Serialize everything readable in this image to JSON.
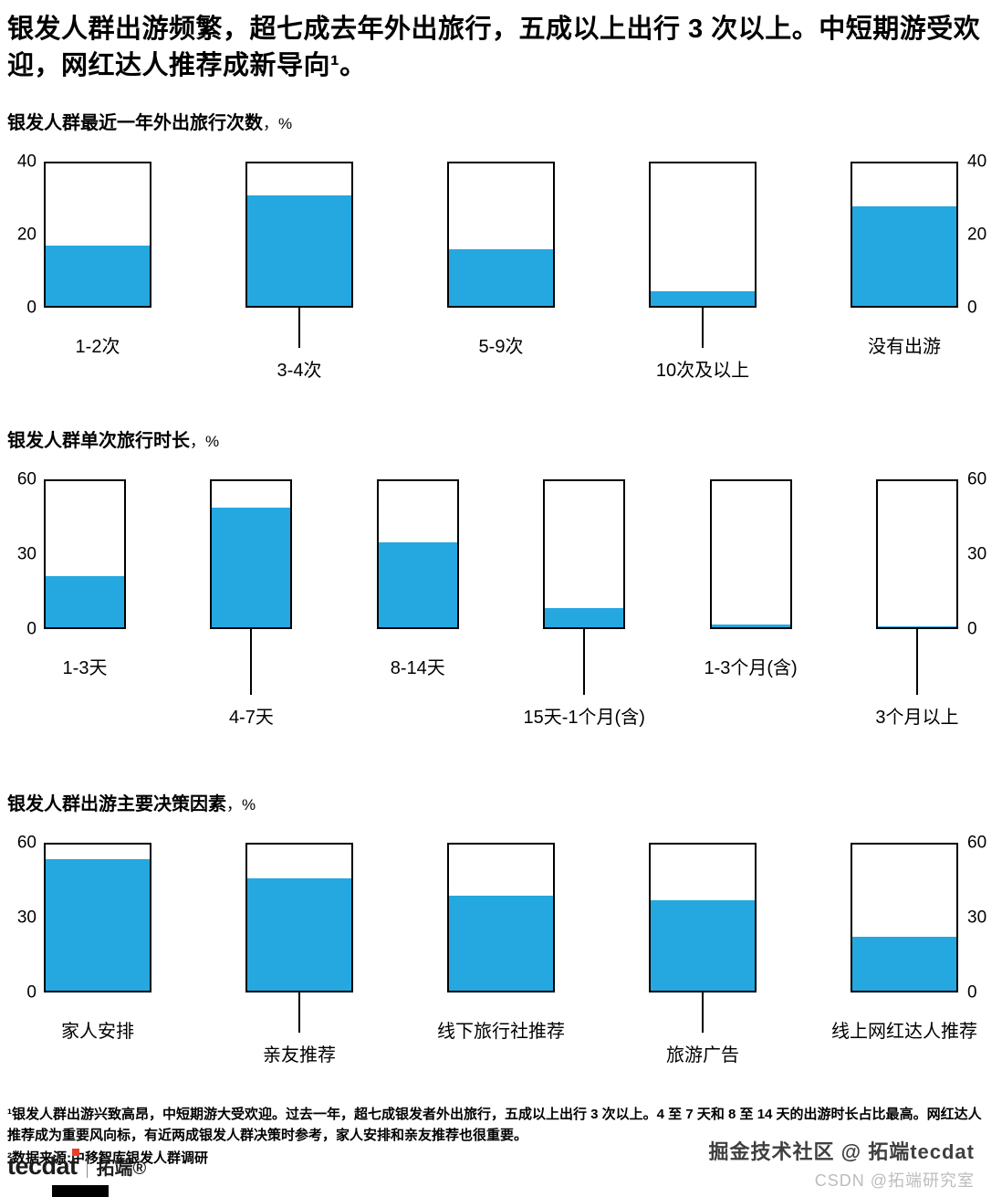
{
  "title": "银发人群出游频繁，超七成去年外出旅行，五成以上出行 3 次以上。中短期游受欢迎，网红达人推荐成新导向¹。",
  "colors": {
    "bar": "#25A8E0",
    "logo_accent": "#E8402C"
  },
  "chart_data": [
    {
      "type": "bar",
      "title": "银发人群最近一年外出旅行次数",
      "unit_label": "，%",
      "categories": [
        "1-2次",
        "3-4次",
        "5-9次",
        "10次及以上",
        "没有出游"
      ],
      "values": [
        17,
        31,
        16,
        4,
        28
      ],
      "ylim": [
        0,
        40
      ],
      "yticks": [
        0,
        20,
        40
      ],
      "xlabel": "",
      "ylabel": "%",
      "grid": false,
      "legend": "none"
    },
    {
      "type": "bar",
      "title": "银发人群单次旅行时长",
      "unit_label": "，%",
      "categories": [
        "1-3天",
        "4-7天",
        "8-14天",
        "15天-1个月(含)",
        "1-3个月(含)",
        "3个月以上"
      ],
      "values": [
        21,
        49,
        35,
        8,
        1,
        0.5
      ],
      "ylim": [
        0,
        60
      ],
      "yticks": [
        0,
        30,
        60
      ],
      "xlabel": "",
      "ylabel": "%",
      "grid": false,
      "legend": "none"
    },
    {
      "type": "bar",
      "title": "银发人群出游主要决策因素",
      "unit_label": "，%",
      "categories": [
        "家人安排",
        "亲友推荐",
        "线下旅行社推荐",
        "旅游广告",
        "线上网红达人推荐"
      ],
      "values": [
        54,
        46,
        39,
        37,
        22
      ],
      "ylim": [
        0,
        60
      ],
      "yticks": [
        0,
        30,
        60
      ],
      "xlabel": "",
      "ylabel": "%",
      "grid": false,
      "legend": "none"
    }
  ],
  "footnotes": {
    "note1": "¹银发人群出游兴致高昂，中短期游大受欢迎。过去一年，超七成银发者外出旅行，五成以上出行 3 次以上。4 至 7 天和 8 至 14 天的出游时长占比最高。网红达人推荐成为重要风向标，有近两成银发人群决策时参考，家人安排和亲友推荐也很重要。",
    "note2": "²数据来源:中移智库银发人群调研"
  },
  "footer": {
    "logo_text": "tecdat",
    "logo_brand": "拓端®",
    "watermark1": "掘金技术社区 @ 拓端tecdat",
    "watermark2": "CSDN @拓端研究室"
  }
}
